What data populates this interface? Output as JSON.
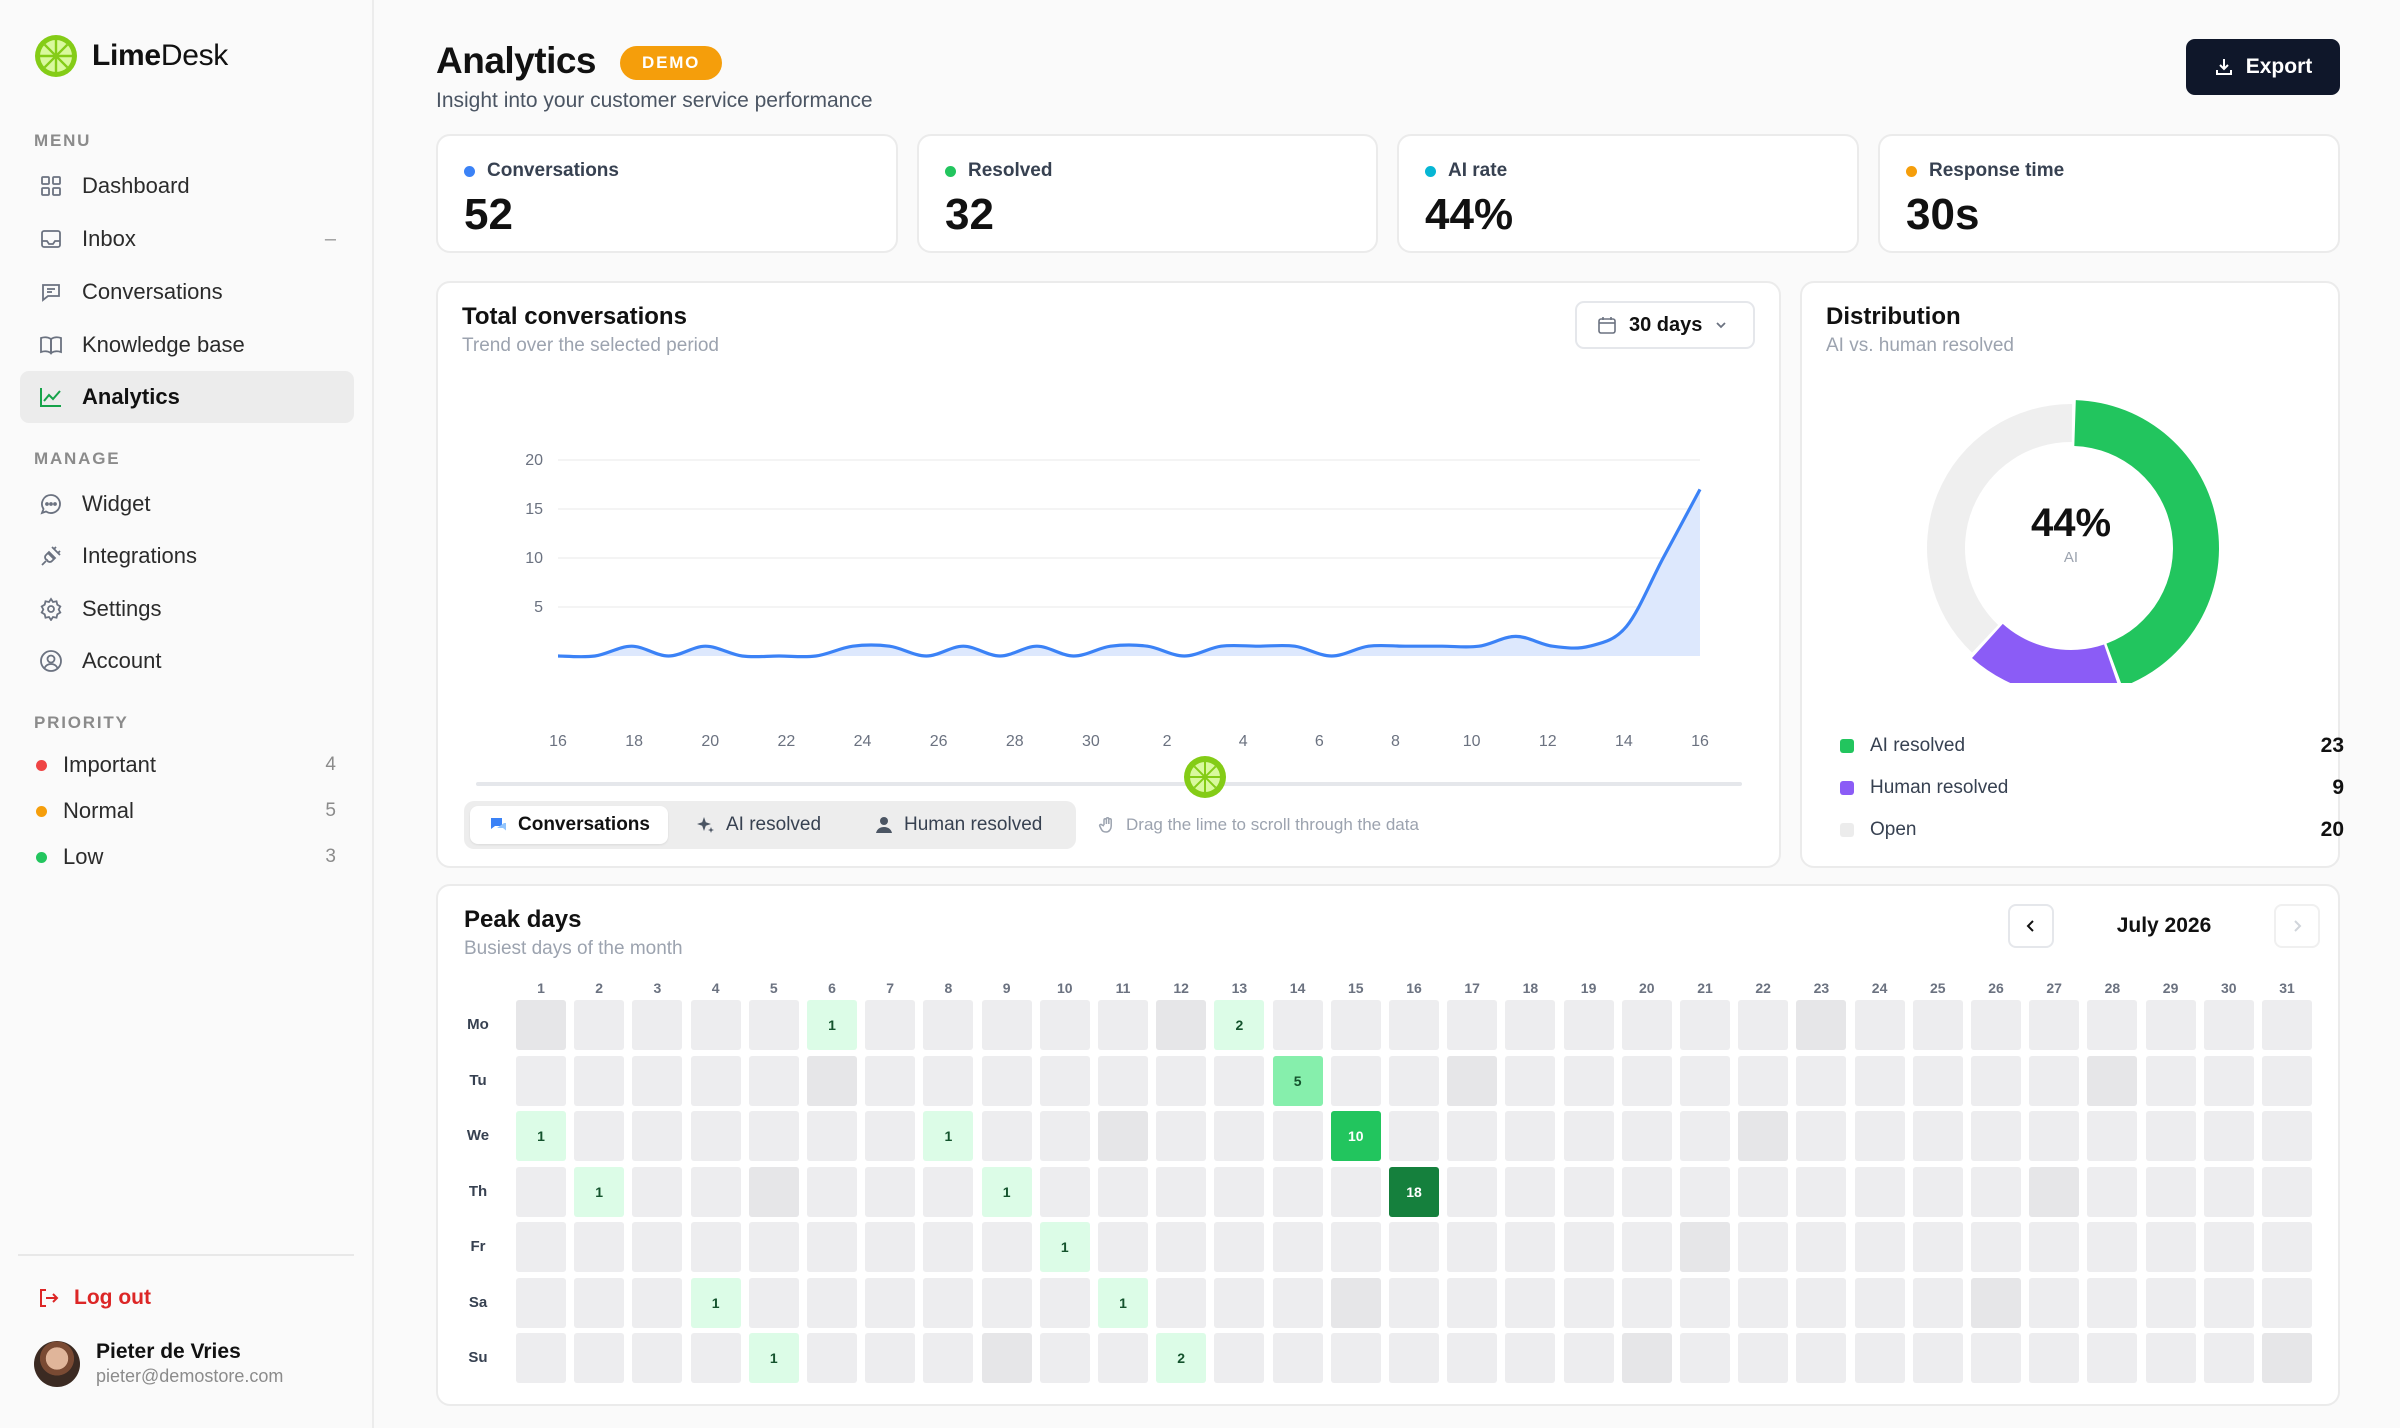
{
  "brand": {
    "name_bold": "Lime",
    "name_rest": "Desk"
  },
  "sidebar": {
    "menu_label": "MENU",
    "menu": [
      {
        "label": "Dashboard",
        "icon": "grid-icon"
      },
      {
        "label": "Inbox",
        "icon": "inbox-icon",
        "trail": "–"
      },
      {
        "label": "Conversations",
        "icon": "chat-icon"
      },
      {
        "label": "Knowledge base",
        "icon": "book-icon"
      },
      {
        "label": "Analytics",
        "icon": "chart-icon",
        "active": true
      }
    ],
    "manage_label": "MANAGE",
    "manage": [
      {
        "label": "Widget",
        "icon": "chat-bubble-icon"
      },
      {
        "label": "Integrations",
        "icon": "plug-icon"
      },
      {
        "label": "Settings",
        "icon": "gear-icon"
      },
      {
        "label": "Account",
        "icon": "user-circle-icon"
      }
    ],
    "priority_label": "PRIORITY",
    "priority": [
      {
        "label": "Important",
        "count": "4",
        "color": "#ef4444"
      },
      {
        "label": "Normal",
        "count": "5",
        "color": "#f59e0b"
      },
      {
        "label": "Low",
        "count": "3",
        "color": "#22c55e"
      }
    ],
    "logout": "Log out",
    "user": {
      "name": "Pieter de Vries",
      "email": "pieter@demostore.com"
    }
  },
  "header": {
    "title": "Analytics",
    "badge": "DEMO",
    "subtitle": "Insight into your customer service performance",
    "export": "Export"
  },
  "stats": [
    {
      "label": "Conversations",
      "value": "52",
      "color": "#3b82f6"
    },
    {
      "label": "Resolved",
      "value": "32",
      "color": "#22c55e"
    },
    {
      "label": "AI rate",
      "value": "44%",
      "color": "#06b6d4"
    },
    {
      "label": "Response time",
      "value": "30s",
      "color": "#f59e0b"
    }
  ],
  "trend": {
    "title": "Total conversations",
    "subtitle": "Trend over the selected period",
    "period": "30 days",
    "tabs": [
      {
        "label": "Conversations",
        "icon": "chat-icon",
        "active": true
      },
      {
        "label": "AI resolved",
        "icon": "sparkle-icon"
      },
      {
        "label": "Human resolved",
        "icon": "person-icon"
      }
    ],
    "hint": "Drag the lime to scroll through the data"
  },
  "chart_data": {
    "type": "area",
    "x": [
      "16",
      "17",
      "18",
      "19",
      "20",
      "21",
      "22",
      "23",
      "24",
      "25",
      "26",
      "27",
      "28",
      "29",
      "30",
      "31",
      "1",
      "2",
      "3",
      "4",
      "5",
      "6",
      "7",
      "8",
      "9",
      "10",
      "11",
      "12",
      "13",
      "14",
      "15",
      "16"
    ],
    "xticks": [
      "16",
      "18",
      "20",
      "22",
      "24",
      "26",
      "28",
      "30",
      "2",
      "4",
      "6",
      "8",
      "10",
      "12",
      "14",
      "16"
    ],
    "series": [
      {
        "values": [
          0,
          0,
          1,
          0,
          1,
          0,
          0,
          0,
          1,
          1,
          0,
          1,
          0,
          1,
          0,
          1,
          1,
          0,
          1,
          1,
          1,
          0,
          1,
          1,
          1,
          1,
          2,
          1,
          1,
          3,
          10,
          17
        ]
      }
    ],
    "ylim": [
      0,
      20
    ],
    "yticks": [
      "5",
      "10",
      "15",
      "20"
    ],
    "grid": true
  },
  "distribution": {
    "title": "Distribution",
    "subtitle": "AI vs. human resolved",
    "center_value": "44%",
    "center_label": "AI",
    "items": [
      {
        "label": "AI resolved",
        "value": 23,
        "color": "#22c55e"
      },
      {
        "label": "Human resolved",
        "value": 9,
        "color": "#8b5cf6"
      },
      {
        "label": "Open",
        "value": 20,
        "color": "#ececec"
      }
    ]
  },
  "peak": {
    "title": "Peak days",
    "subtitle": "Busiest days of the month",
    "month": "July 2026",
    "rows": [
      "Mo",
      "Tu",
      "We",
      "Th",
      "Fr",
      "Sa",
      "Su"
    ],
    "days": [
      "1",
      "2",
      "3",
      "4",
      "5",
      "6",
      "7",
      "8",
      "9",
      "10",
      "11",
      "12",
      "13",
      "14",
      "15",
      "16",
      "17",
      "18",
      "19",
      "20",
      "21",
      "22",
      "23",
      "24",
      "25",
      "26",
      "27",
      "28",
      "29",
      "30",
      "31"
    ],
    "values": [
      [
        0,
        0,
        0,
        0,
        0,
        1,
        0,
        0,
        0,
        0,
        0,
        0,
        2,
        0,
        0,
        0,
        0,
        0,
        0,
        0,
        0,
        0,
        0,
        0,
        0,
        0,
        0,
        0,
        0,
        0,
        0
      ],
      [
        0,
        0,
        0,
        0,
        0,
        0,
        0,
        0,
        0,
        0,
        0,
        0,
        0,
        5,
        0,
        0,
        0,
        0,
        0,
        0,
        0,
        0,
        0,
        0,
        0,
        0,
        0,
        0,
        0,
        0,
        0
      ],
      [
        1,
        0,
        0,
        0,
        0,
        0,
        0,
        1,
        0,
        0,
        0,
        0,
        0,
        0,
        10,
        0,
        0,
        0,
        0,
        0,
        0,
        0,
        0,
        0,
        0,
        0,
        0,
        0,
        0,
        0,
        0
      ],
      [
        0,
        1,
        0,
        0,
        0,
        0,
        0,
        0,
        1,
        0,
        0,
        0,
        0,
        0,
        0,
        18,
        0,
        0,
        0,
        0,
        0,
        0,
        0,
        0,
        0,
        0,
        0,
        0,
        0,
        0,
        0
      ],
      [
        0,
        0,
        0,
        0,
        0,
        0,
        0,
        0,
        0,
        1,
        0,
        0,
        0,
        0,
        0,
        0,
        0,
        0,
        0,
        0,
        0,
        0,
        0,
        0,
        0,
        0,
        0,
        0,
        0,
        0,
        0
      ],
      [
        0,
        0,
        0,
        1,
        0,
        0,
        0,
        0,
        0,
        0,
        1,
        0,
        0,
        0,
        0,
        0,
        0,
        0,
        0,
        0,
        0,
        0,
        0,
        0,
        0,
        0,
        0,
        0,
        0,
        0,
        0
      ],
      [
        0,
        0,
        0,
        0,
        1,
        0,
        0,
        0,
        0,
        0,
        0,
        2,
        0,
        0,
        0,
        0,
        0,
        0,
        0,
        0,
        0,
        0,
        0,
        0,
        0,
        0,
        0,
        0,
        0,
        0,
        0
      ]
    ]
  }
}
